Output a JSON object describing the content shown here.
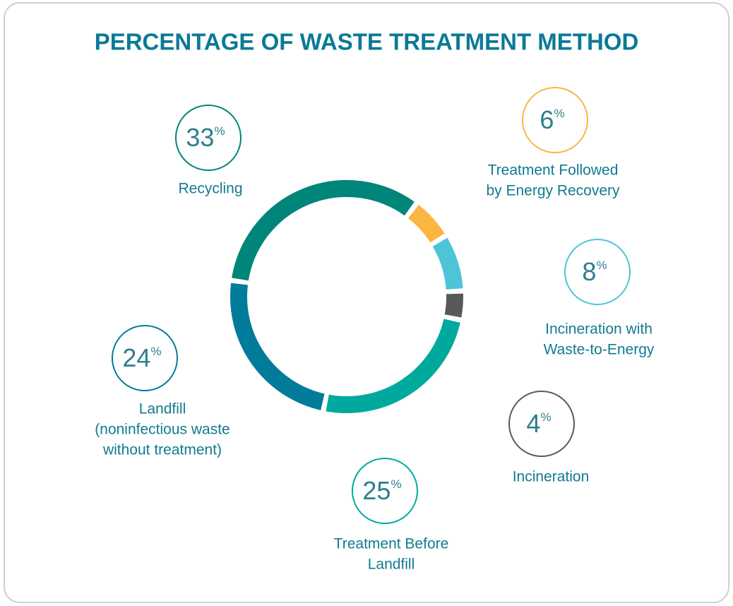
{
  "chart_data": {
    "type": "donut",
    "title": "PERCENTAGE OF WASTE TREATMENT METHOD",
    "unit": "%",
    "categories": [
      [
        "Recycling"
      ],
      [
        "Treatment Followed",
        "by Energy Recovery"
      ],
      [
        "Incineration with",
        "Waste-to-Energy"
      ],
      [
        "Incineration"
      ],
      [
        "Treatment Before",
        "Landfill"
      ],
      [
        "Landfill",
        "(noninfectious waste",
        "without treatment)"
      ]
    ],
    "values": [
      33,
      6,
      8,
      4,
      25,
      24
    ],
    "colors": [
      "#00857a",
      "#fbb541",
      "#4ec4d8",
      "#58595b",
      "#00a99d",
      "#007b99"
    ]
  }
}
